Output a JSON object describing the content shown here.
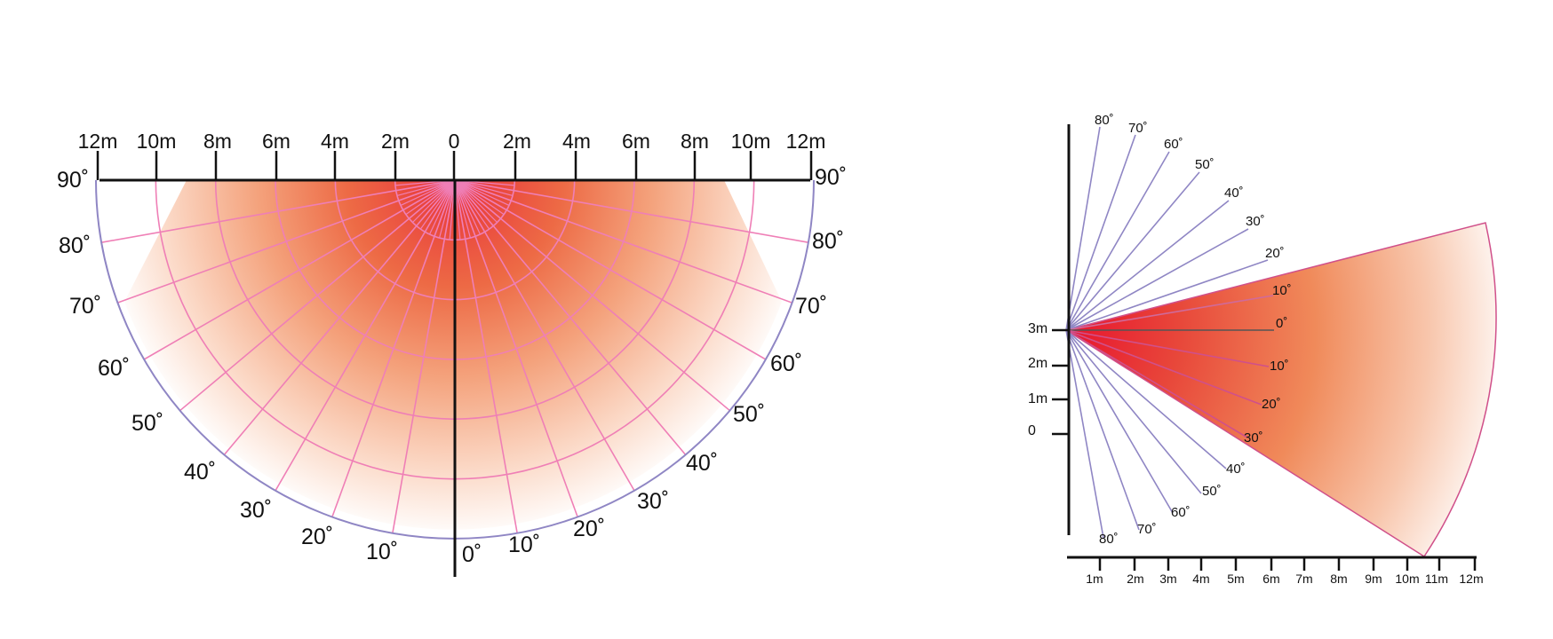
{
  "colors": {
    "background": "#ffffff",
    "hot": "#e8132e",
    "mid": "#f08a5a",
    "cool": "#fde8dc",
    "pink_grid": "#ef7fb6",
    "purple_line": "#8f86c4",
    "axis": "#111111"
  },
  "top_view": {
    "distance_labels_left": [
      "12m",
      "10m",
      "8m",
      "6m",
      "4m",
      "2m"
    ],
    "center_label": "0",
    "distance_labels_right": [
      "2m",
      "4m",
      "6m",
      "8m",
      "10m",
      "12m"
    ],
    "angle_labels_left": [
      "90˚",
      "80˚",
      "70˚",
      "60˚",
      "50˚",
      "40˚",
      "30˚",
      "20˚",
      "10˚"
    ],
    "angle_labels_right": [
      "0˚",
      "10˚",
      "20˚",
      "30˚",
      "40˚",
      "50˚",
      "60˚",
      "70˚",
      "80˚",
      "90˚"
    ]
  },
  "side_view": {
    "height_labels": [
      "3m",
      "2m",
      "1m",
      "0"
    ],
    "upper_angle_labels": [
      "80˚",
      "70˚",
      "60˚",
      "50˚",
      "40˚",
      "30˚",
      "20˚",
      "10˚"
    ],
    "zero_label": "0˚",
    "lower_angle_labels": [
      "10˚",
      "20˚",
      "30˚",
      "40˚",
      "50˚",
      "60˚",
      "70˚",
      "80˚"
    ],
    "distance_labels": [
      "1m",
      "2m",
      "3m",
      "4m",
      "5m",
      "6m",
      "7m",
      "8m",
      "9m",
      "10m",
      "11m",
      "12m"
    ]
  }
}
